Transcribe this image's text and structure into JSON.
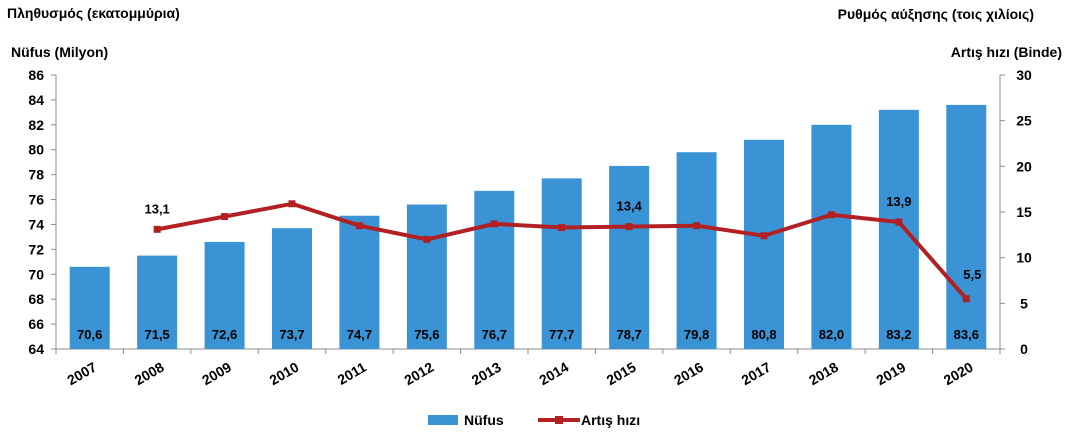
{
  "header": {
    "left_greek": "Πληθυσμός  (εκατομμύρια)",
    "right_greek": "Ρυθμός αύξησης (τοις χιλίοις)",
    "left_axis_label": "Nüfus (Milyon)",
    "right_axis_label": "Artış hızı (Binde)"
  },
  "chart_data": {
    "type": "bar",
    "categories": [
      "2007",
      "2008",
      "2009",
      "2010",
      "2011",
      "2012",
      "2013",
      "2014",
      "2015",
      "2016",
      "2017",
      "2018",
      "2019",
      "2020"
    ],
    "series": [
      {
        "name": "Nüfus",
        "type": "bar",
        "axis": "left",
        "color": "#3a93d4",
        "values": [
          70.6,
          71.5,
          72.6,
          73.7,
          74.7,
          75.6,
          76.7,
          77.7,
          78.7,
          79.8,
          80.8,
          82.0,
          83.2,
          83.6
        ],
        "labels": [
          "70,6",
          "71,5",
          "72,6",
          "73,7",
          "74,7",
          "75,6",
          "76,7",
          "77,7",
          "78,7",
          "79,8",
          "80,8",
          "82,0",
          "83,2",
          "83,6"
        ]
      },
      {
        "name": "Artış hızı",
        "type": "line",
        "axis": "right",
        "color": "#b22024",
        "values": [
          null,
          13.1,
          14.5,
          15.9,
          13.5,
          12.0,
          13.7,
          13.3,
          13.4,
          13.5,
          12.4,
          14.7,
          13.9,
          5.5
        ],
        "labeled_points": [
          {
            "category": "2008",
            "label": "13,1"
          },
          {
            "category": "2015",
            "label": "13,4"
          },
          {
            "category": "2019",
            "label": "13,9"
          },
          {
            "category": "2020",
            "label": "5,5"
          }
        ]
      }
    ],
    "y_left": {
      "min": 64,
      "max": 86,
      "step": 2
    },
    "y_right": {
      "min": 0,
      "max": 30,
      "step": 5
    },
    "legend": {
      "position": "bottom-center",
      "entries": [
        "Nüfus",
        "Artış hızı"
      ]
    },
    "grid": false
  }
}
